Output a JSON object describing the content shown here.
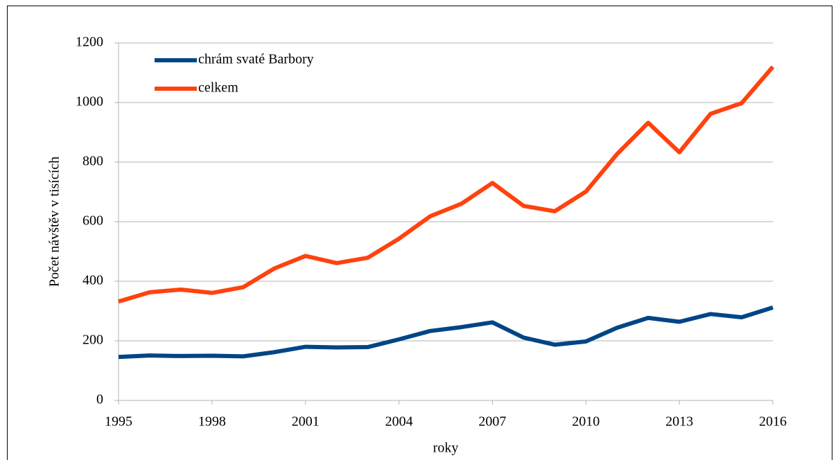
{
  "chart_data": {
    "type": "line",
    "x": [
      1995,
      1996,
      1997,
      1998,
      1999,
      2000,
      2001,
      2002,
      2003,
      2004,
      2005,
      2006,
      2007,
      2008,
      2009,
      2010,
      2011,
      2012,
      2013,
      2014,
      2015,
      2016
    ],
    "series": [
      {
        "name": "chrám svaté Barbory",
        "color": "#004586",
        "values": [
          146,
          151,
          149,
          150,
          148,
          162,
          180,
          178,
          179,
          205,
          233,
          246,
          262,
          211,
          187,
          198,
          244,
          277,
          264,
          290,
          279,
          312
        ]
      },
      {
        "name": "celkem",
        "color": "#ff420e",
        "values": [
          332,
          363,
          372,
          361,
          380,
          443,
          485,
          461,
          479,
          543,
          618,
          660,
          730,
          653,
          635,
          701,
          827,
          932,
          833,
          962,
          998,
          1120
        ]
      }
    ],
    "xlim": [
      1995,
      2016
    ],
    "xticks": [
      1995,
      1998,
      2001,
      2004,
      2007,
      2010,
      2013,
      2016
    ],
    "ylim": [
      0,
      1200
    ],
    "yticks": [
      0,
      200,
      400,
      600,
      800,
      1000,
      1200
    ],
    "xlabel": "roky",
    "ylabel": "Počet návštěv v tisících",
    "grid": true,
    "legend": "upper left"
  }
}
